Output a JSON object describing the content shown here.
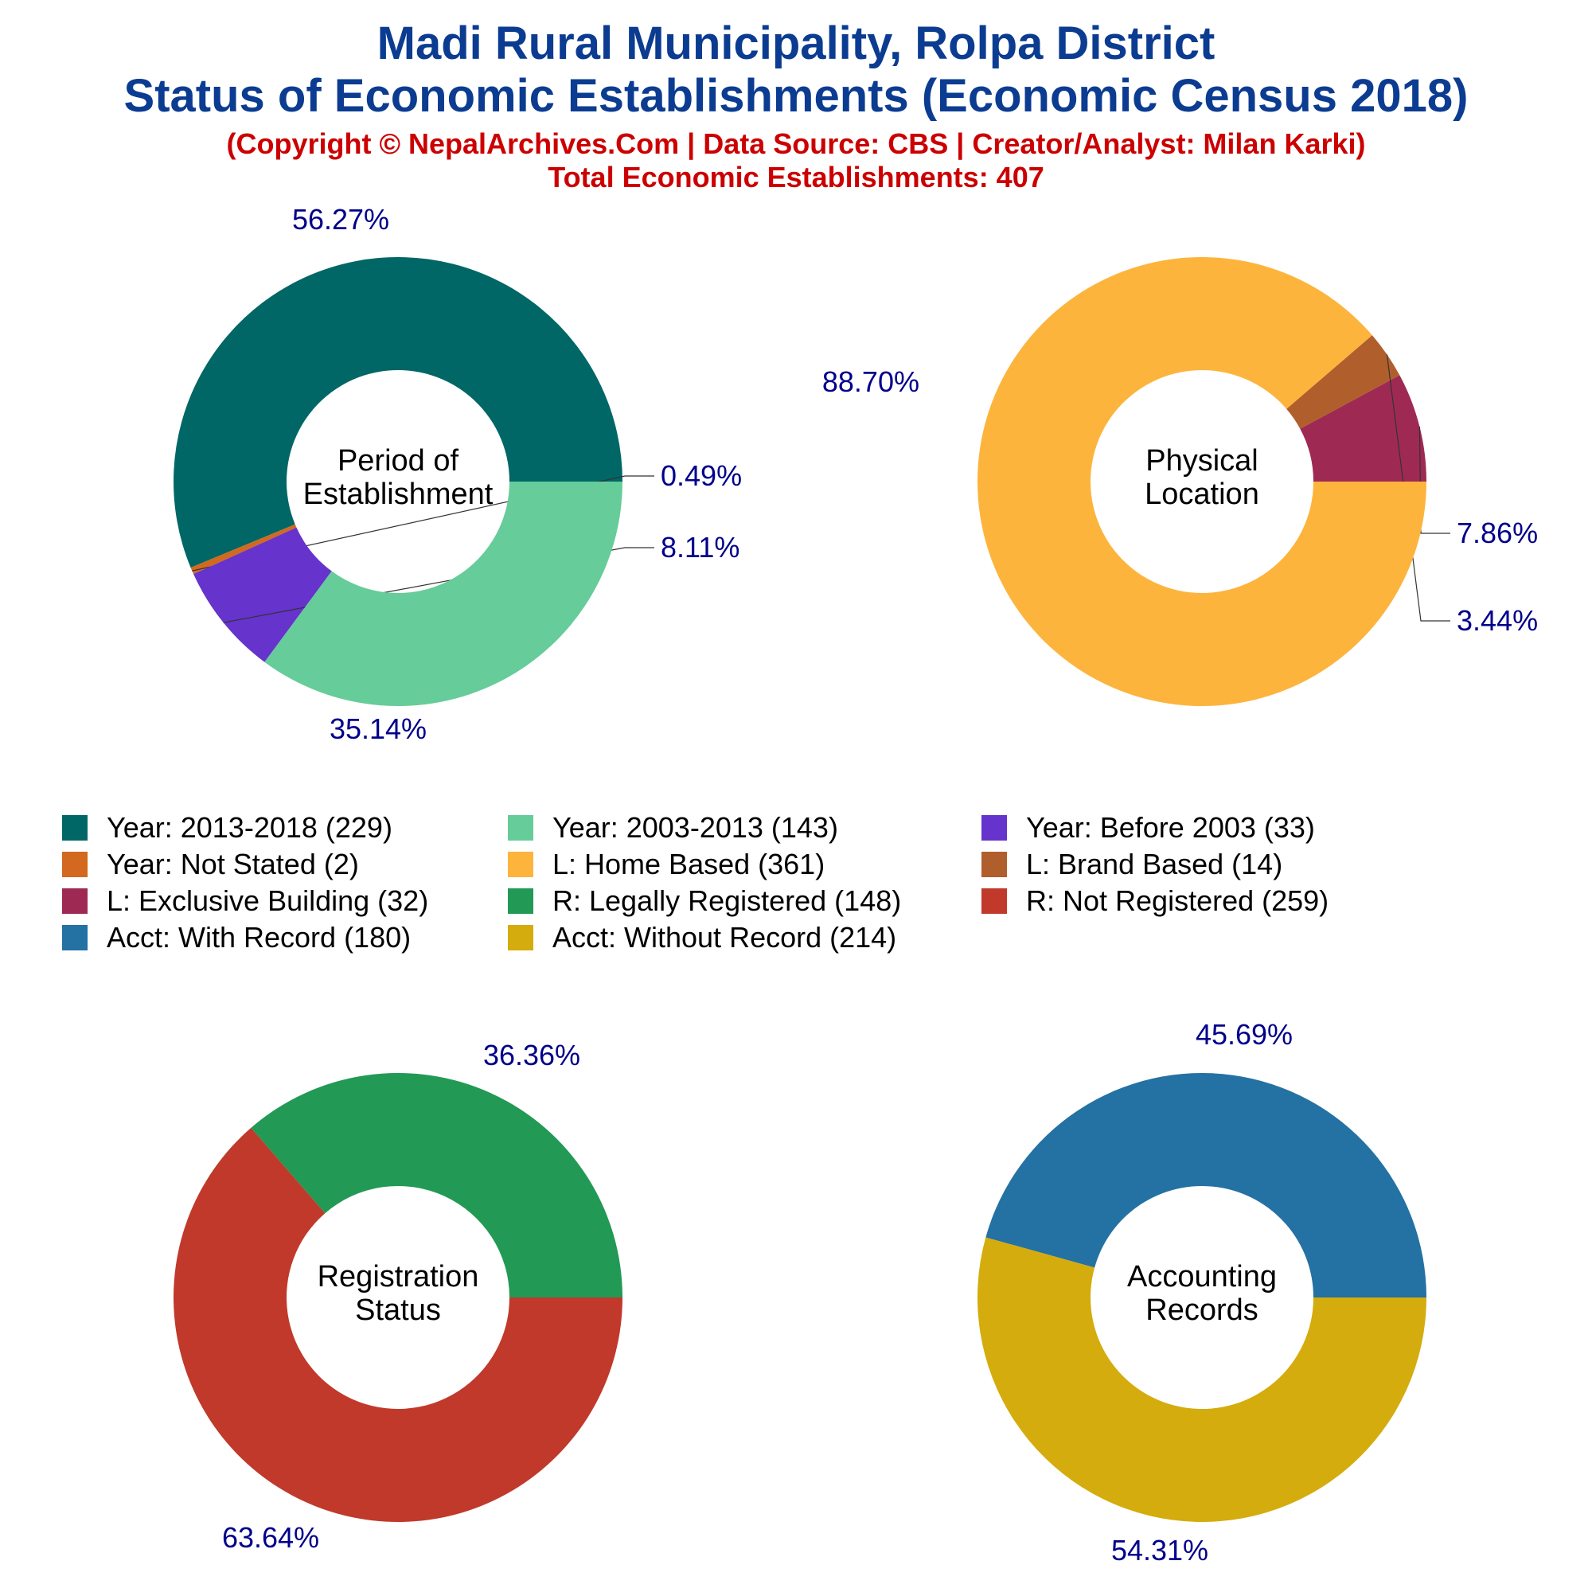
{
  "header": {
    "title_line1": "Madi Rural Municipality, Rolpa District",
    "title_line2": "Status of Economic Establishments (Economic Census 2018)",
    "subtitle_line1": "(Copyright © NepalArchives.Com | Data Source: CBS | Creator/Analyst: Milan Karki)",
    "subtitle_line2": "Total Economic Establishments: 407"
  },
  "colors": {
    "percent_label": "#00008b",
    "center_label": "#000000",
    "title": "#0b3c91",
    "subtitle": "#cc0000"
  },
  "chart_data": [
    {
      "type": "pie",
      "variant": "donut",
      "center_label": [
        "Period of",
        "Establishment"
      ],
      "slices": [
        {
          "label": "Year: 2013-2018",
          "value": 229,
          "percent_label": "56.27%",
          "color": "#006766"
        },
        {
          "label": "Year: Not Stated",
          "value": 2,
          "percent_label": "0.49%",
          "color": "#d2691e"
        },
        {
          "label": "Year: Before 2003",
          "value": 33,
          "percent_label": "8.11%",
          "color": "#6633cc"
        },
        {
          "label": "Year: 2003-2013",
          "value": 143,
          "percent_label": "35.14%",
          "color": "#66cc99"
        }
      ]
    },
    {
      "type": "pie",
      "variant": "donut",
      "center_label": [
        "Physical",
        "Location"
      ],
      "slices": [
        {
          "label": "L: Exclusive Building",
          "value": 32,
          "percent_label": "7.86%",
          "color": "#9e2a54"
        },
        {
          "label": "L: Brand Based",
          "value": 14,
          "percent_label": "3.44%",
          "color": "#b05f2c"
        },
        {
          "label": "L: Home Based",
          "value": 361,
          "percent_label": "88.70%",
          "color": "#fdb43d"
        }
      ]
    },
    {
      "type": "pie",
      "variant": "donut",
      "center_label": [
        "Registration",
        "Status"
      ],
      "slices": [
        {
          "label": "R: Legally Registered",
          "value": 148,
          "percent_label": "36.36%",
          "color": "#229955"
        },
        {
          "label": "R: Not Registered",
          "value": 259,
          "percent_label": "63.64%",
          "color": "#c0392b"
        }
      ]
    },
    {
      "type": "pie",
      "variant": "donut",
      "center_label": [
        "Accounting",
        "Records"
      ],
      "slices": [
        {
          "label": "Acct: With Record",
          "value": 180,
          "percent_label": "45.69%",
          "color": "#2471a3"
        },
        {
          "label": "Acct: Without Record",
          "value": 214,
          "percent_label": "54.31%",
          "color": "#d4ac0d"
        }
      ]
    }
  ],
  "legend": {
    "placement": "middle",
    "items": [
      {
        "label": "Year: 2013-2018 (229)",
        "color": "#006766"
      },
      {
        "label": "Year: 2003-2013 (143)",
        "color": "#66cc99"
      },
      {
        "label": "Year: Before 2003 (33)",
        "color": "#6633cc"
      },
      {
        "label": "Year: Not Stated (2)",
        "color": "#d2691e"
      },
      {
        "label": "L: Home Based (361)",
        "color": "#fdb43d"
      },
      {
        "label": "L: Brand Based (14)",
        "color": "#b05f2c"
      },
      {
        "label": "L: Exclusive Building (32)",
        "color": "#9e2a54"
      },
      {
        "label": "R: Legally Registered (148)",
        "color": "#229955"
      },
      {
        "label": "R: Not Registered (259)",
        "color": "#c0392b"
      },
      {
        "label": "Acct: With Record (180)",
        "color": "#2471a3"
      },
      {
        "label": "Acct: Without Record (214)",
        "color": "#d4ac0d"
      }
    ]
  }
}
